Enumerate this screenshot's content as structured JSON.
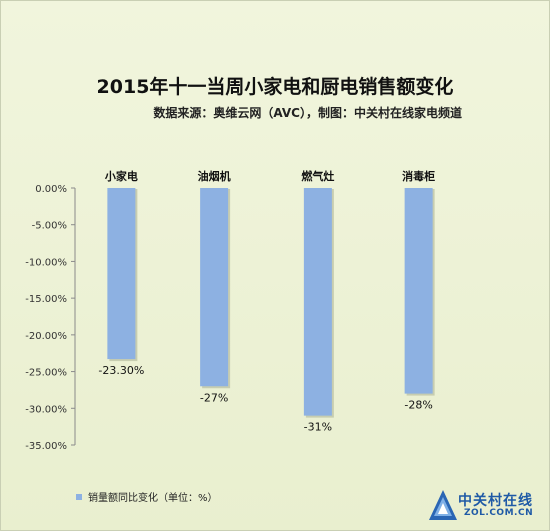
{
  "chart_data": {
    "type": "bar",
    "title": "2015年十一当周小家电和厨电销售额变化",
    "subtitle": "数据来源：奥维云网（AVC），制图：中关村在线家电频道",
    "categories": [
      "小家电",
      "油烟机",
      "燃气灶",
      "消毒柜"
    ],
    "series": [
      {
        "name": "销量额同比变化（单位：%）",
        "values": [
          -23.3,
          -27,
          -31,
          -28
        ],
        "labels": [
          "-23.30%",
          "-27%",
          "-31%",
          "-28%"
        ],
        "color": "#8db1e2"
      }
    ],
    "ylim": [
      -35,
      0
    ],
    "yticks": [
      "0.00%",
      "-5.00%",
      "-10.00%",
      "-15.00%",
      "-20.00%",
      "-25.00%",
      "-30.00%",
      "-35.00%"
    ],
    "legend_position": "bottom-left",
    "grid": false,
    "xlabel": "",
    "ylabel": ""
  },
  "logo": {
    "brand": "中关村在线",
    "domain": "ZOL.COM.CN",
    "color": "#1f5aa6"
  }
}
